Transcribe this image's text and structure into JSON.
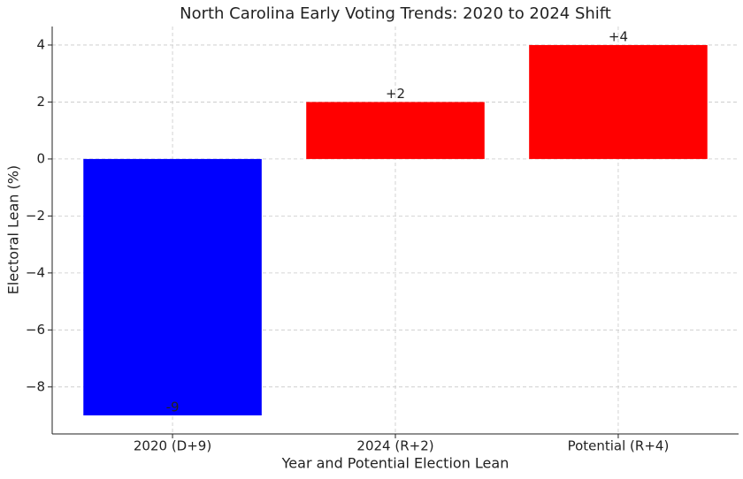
{
  "chart_data": {
    "type": "bar",
    "title": "North Carolina Early Voting Trends: 2020 to 2024 Shift",
    "xlabel": "Year and Potential Election Lean",
    "ylabel": "Electoral Lean (%)",
    "categories": [
      "2020 (D+9)",
      "2024 (R+2)",
      "Potential (R+4)"
    ],
    "values": [
      -9,
      2,
      4
    ],
    "value_labels": [
      "-9",
      "+2",
      "+4"
    ],
    "colors": [
      "#0000ff",
      "#ff0000",
      "#ff0000"
    ],
    "ylim": [
      -9.65,
      4.65
    ],
    "yticks": [
      {
        "value": -8,
        "label": "−8"
      },
      {
        "value": -6,
        "label": "−6"
      },
      {
        "value": -4,
        "label": "−4"
      },
      {
        "value": -2,
        "label": "−2"
      },
      0,
      2,
      4
    ],
    "grid": true
  }
}
